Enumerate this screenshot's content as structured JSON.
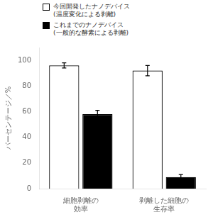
{
  "chart_data": {
    "type": "bar",
    "categories": [
      "細胞剥離の\n効率",
      "剥離した細胞の\n生存率"
    ],
    "series": [
      {
        "name": "今回開発したナノデバイス\n(温度変化による剥離)",
        "color": "#ffffff",
        "values": [
          96,
          92
        ],
        "errors": [
          2,
          4
        ]
      },
      {
        "name": "これまでのナノデバイス\n(一般的な酵素による剥離)",
        "color": "#000000",
        "values": [
          58,
          9
        ],
        "errors": [
          3,
          2
        ]
      }
    ],
    "ylabel": "パーセンテージ／%",
    "ylim": [
      0,
      110
    ],
    "yticks": [
      0,
      20,
      40,
      60,
      80,
      100
    ],
    "grid": false,
    "legend": "upper left"
  }
}
